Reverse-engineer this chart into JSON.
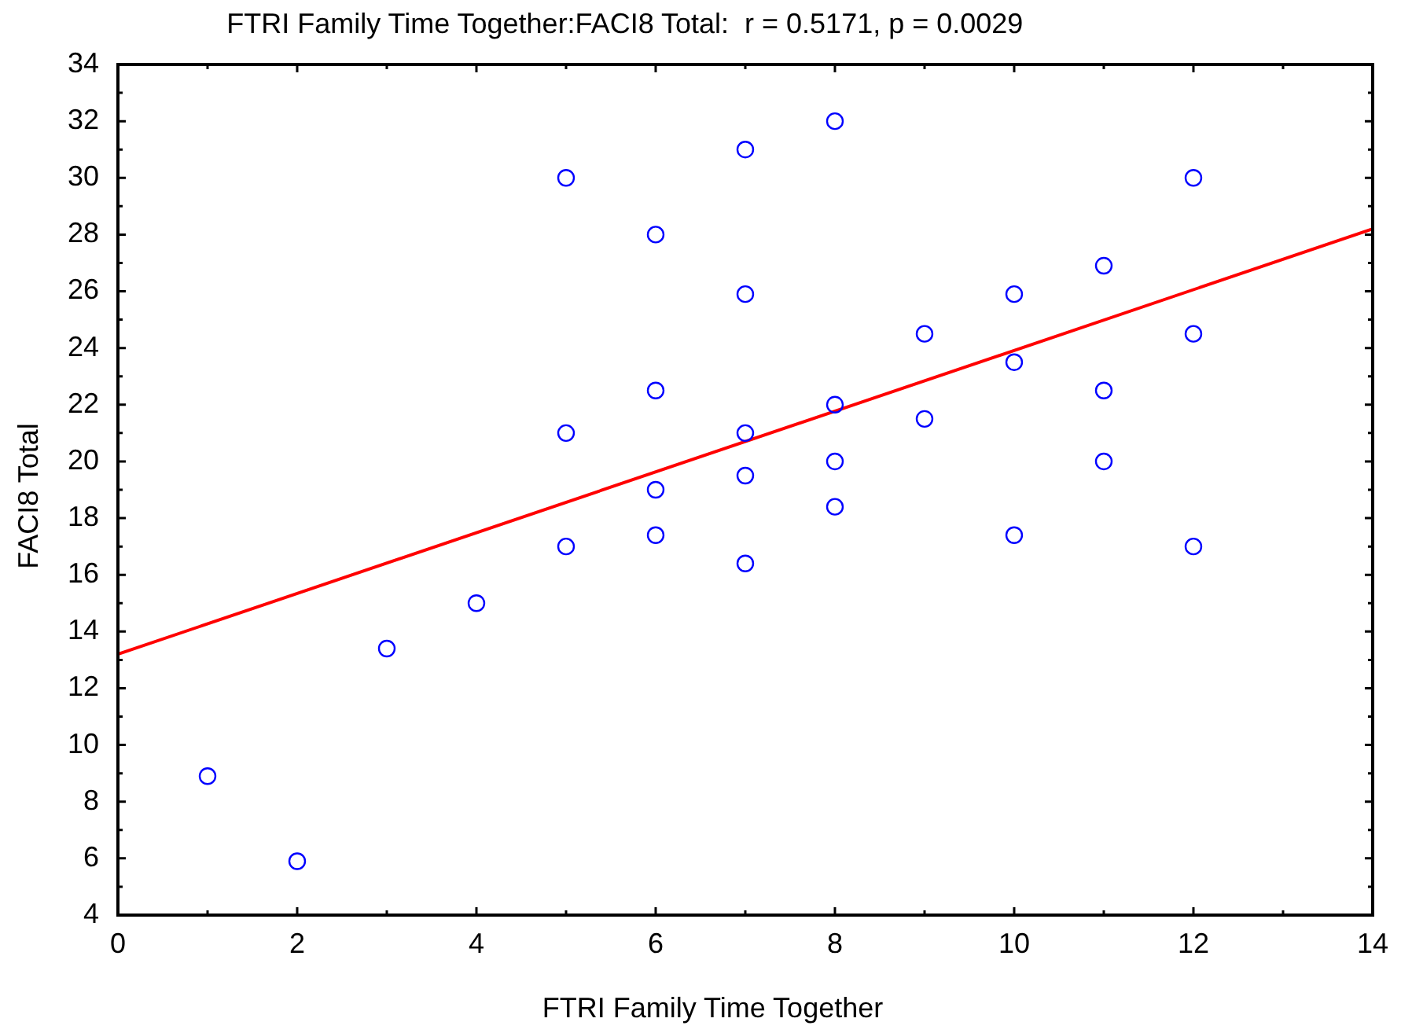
{
  "chart_data": {
    "type": "scatter",
    "title": "FTRI Family Time Together:FACI8 Total:  r = 0.5171, p = 0.0029",
    "xlabel": "FTRI Family Time Together",
    "ylabel": "FACI8 Total",
    "series": [
      {
        "color": "#0000ff",
        "x": [
          1,
          2,
          3,
          4,
          5,
          5,
          5,
          6,
          6,
          6,
          6,
          7,
          7,
          7,
          7,
          7,
          8,
          8,
          8,
          8,
          9,
          9,
          10,
          10,
          10,
          11,
          11,
          11,
          12,
          12,
          12
        ],
        "values": [
          8.9,
          5.9,
          13.4,
          15,
          17,
          21,
          30,
          17.4,
          19,
          22.5,
          28,
          16.4,
          19.5,
          21,
          25.9,
          31,
          18.4,
          20,
          22,
          32,
          21.5,
          24.5,
          17.4,
          23.5,
          25.9,
          20,
          22.5,
          26.9,
          17,
          24.5,
          30
        ]
      },
      {
        "type": "line",
        "color": "#ff0000",
        "x": [
          0,
          14
        ],
        "values": [
          13.2,
          28.2
        ],
        "marker": "none",
        "line_style": "solid"
      }
    ],
    "xlim": [
      0,
      14
    ],
    "ylim": [
      4,
      34
    ],
    "xticks": [
      0,
      {
        "value": 1,
        "label": null
      },
      2,
      {
        "value": 3,
        "label": null
      },
      4,
      {
        "value": 5,
        "label": null
      },
      6,
      {
        "value": 7,
        "label": null
      },
      8,
      {
        "value": 9,
        "label": null
      },
      10,
      {
        "value": 11,
        "label": null
      },
      12,
      {
        "value": 13,
        "label": null
      },
      14
    ],
    "yticks": [
      4,
      {
        "value": 5,
        "label": null
      },
      6,
      {
        "value": 7,
        "label": null
      },
      8,
      {
        "value": 9,
        "label": null
      },
      10,
      {
        "value": 11,
        "label": null
      },
      12,
      {
        "value": 13,
        "label": null
      },
      14,
      {
        "value": 15,
        "label": null
      },
      16,
      {
        "value": 17,
        "label": null
      },
      18,
      {
        "value": 19,
        "label": null
      },
      20,
      {
        "value": 21,
        "label": null
      },
      22,
      {
        "value": 23,
        "label": null
      },
      24,
      {
        "value": 25,
        "label": null
      },
      26,
      {
        "value": 27,
        "label": null
      },
      28,
      {
        "value": 29,
        "label": null
      },
      30,
      {
        "value": 31,
        "label": null
      },
      32,
      {
        "value": 33,
        "label": null
      },
      34
    ],
    "marker": "circle"
  }
}
